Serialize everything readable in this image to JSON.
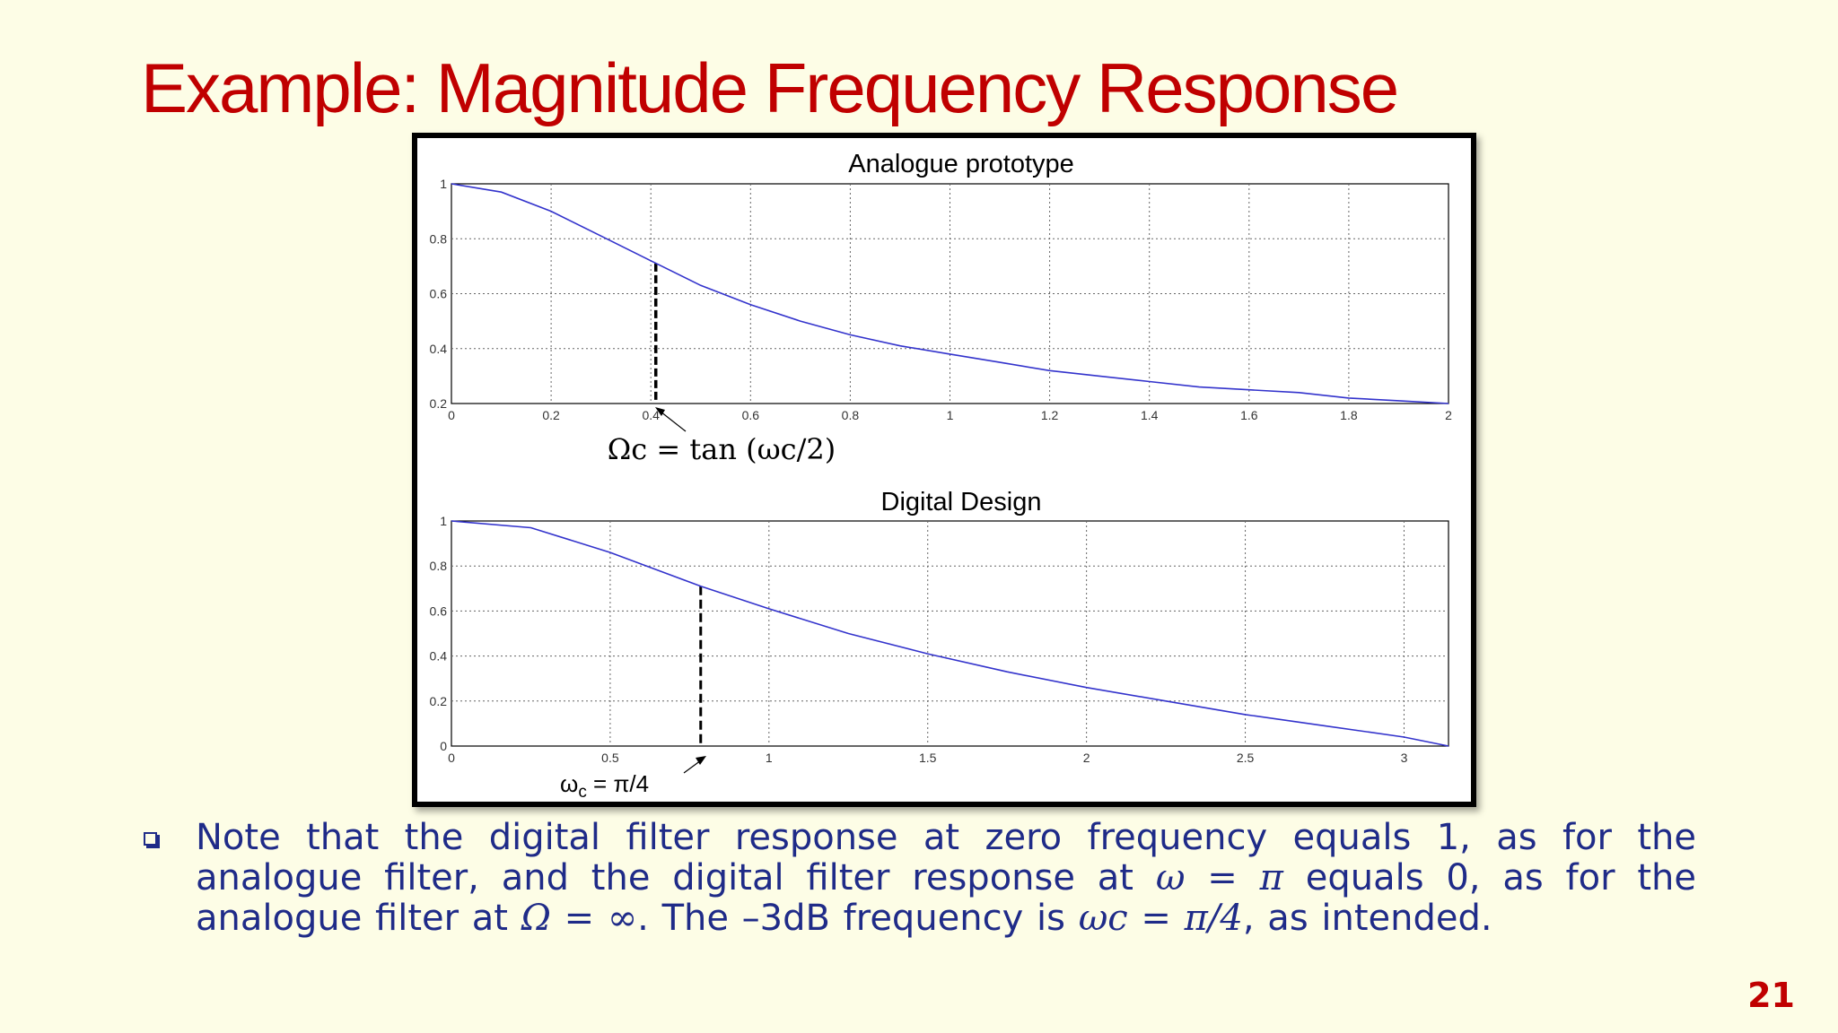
{
  "slide": {
    "title": "Example: Magnitude Frequency Response",
    "page_number": "21",
    "note": {
      "t1": "Note that the digital filter response at zero frequency equals 1, as for the analogue filter, and the digital filter response at ",
      "m1": "ω = π",
      "t2": " equals 0, as for the analogue filter at ",
      "m2": "Ω  =  ∞",
      "t3": ". The –3dB frequency is ",
      "m3": "ωc = π/4",
      "t4": ", as intended."
    }
  },
  "colors": {
    "title": "#c00000",
    "text": "#1f2b88",
    "curve": "#3333cc",
    "background": "#fdfde6"
  },
  "chart_data": [
    {
      "type": "line",
      "title": "Analogue prototype",
      "xlabel": "",
      "ylabel": "",
      "xlim": [
        0,
        2
      ],
      "ylim": [
        0.2,
        1
      ],
      "xticks": [
        0,
        0.2,
        0.4,
        0.6,
        0.8,
        1,
        1.2,
        1.4,
        1.6,
        1.8,
        2
      ],
      "xtick_labels": [
        "0",
        "0.2",
        "0.4",
        "0.6",
        "0.8",
        "1",
        "1.2",
        "1.4",
        "1.6",
        "1.8",
        "2"
      ],
      "yticks": [
        0.2,
        0.4,
        0.6,
        0.8,
        1
      ],
      "ytick_labels": [
        "0.2",
        "0.4",
        "0.6",
        "0.8",
        "1"
      ],
      "grid": true,
      "series": [
        {
          "x": [
            0,
            0.1,
            0.2,
            0.3,
            0.4,
            0.5,
            0.6,
            0.7,
            0.8,
            0.9,
            1.0,
            1.1,
            1.2,
            1.3,
            1.4,
            1.5,
            1.6,
            1.7,
            1.8,
            1.9,
            2.0
          ],
          "y": [
            1.0,
            0.97,
            0.9,
            0.81,
            0.72,
            0.63,
            0.56,
            0.5,
            0.45,
            0.41,
            0.38,
            0.35,
            0.32,
            0.3,
            0.28,
            0.26,
            0.25,
            0.24,
            0.22,
            0.21,
            0.2
          ]
        }
      ],
      "marker": {
        "x": 0.41,
        "y": 0.71
      },
      "annotation": "Ωc = tan (ωc/2)"
    },
    {
      "type": "line",
      "title": "Digital Design",
      "xlabel": "",
      "ylabel": "",
      "xlim": [
        0,
        3.14
      ],
      "ylim": [
        0,
        1
      ],
      "xticks": [
        0,
        0.5,
        1,
        1.5,
        2,
        2.5,
        3
      ],
      "xtick_labels": [
        "0",
        "0.5",
        "1",
        "1.5",
        "2",
        "2.5",
        "3"
      ],
      "yticks": [
        0,
        0.2,
        0.4,
        0.6,
        0.8,
        1
      ],
      "ytick_labels": [
        "0",
        "0.2",
        "0.4",
        "0.6",
        "0.8",
        "1"
      ],
      "grid": true,
      "series": [
        {
          "x": [
            0,
            0.25,
            0.5,
            0.785,
            1.0,
            1.25,
            1.5,
            1.75,
            2.0,
            2.25,
            2.5,
            2.75,
            3.0,
            3.14
          ],
          "y": [
            1.0,
            0.97,
            0.86,
            0.71,
            0.61,
            0.5,
            0.41,
            0.33,
            0.26,
            0.2,
            0.14,
            0.09,
            0.04,
            0.0
          ]
        }
      ],
      "marker": {
        "x": 0.785,
        "y": 0.71
      },
      "annotation": {
        "main": "ω",
        "sub": "c",
        "rest": " = π/4"
      }
    }
  ]
}
